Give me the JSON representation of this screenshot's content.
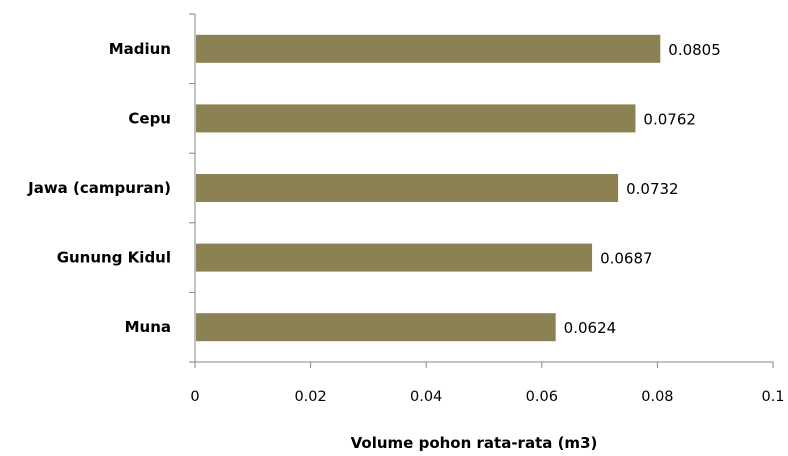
{
  "chart_data": {
    "type": "bar",
    "orientation": "horizontal",
    "categories": [
      "Madiun",
      "Cepu",
      "Jawa (campuran)",
      "Gunung Kidul",
      "Muna"
    ],
    "values": [
      0.0805,
      0.0762,
      0.0732,
      0.0687,
      0.0624
    ],
    "value_labels": [
      "0.0805",
      "0.0762",
      "0.0732",
      "0.0687",
      "0.0624"
    ],
    "xlabel": "Volume pohon rata-rata (m3)",
    "ylabel": "",
    "xlim": [
      0,
      0.1
    ],
    "x_ticks": [
      0,
      0.02,
      0.04,
      0.06,
      0.08,
      0.1
    ],
    "x_tick_labels": [
      "0",
      "0.02",
      "0.04",
      "0.06",
      "0.08",
      "0.1"
    ],
    "grid": false,
    "legend": "none",
    "bar_color": "#8b8152"
  }
}
